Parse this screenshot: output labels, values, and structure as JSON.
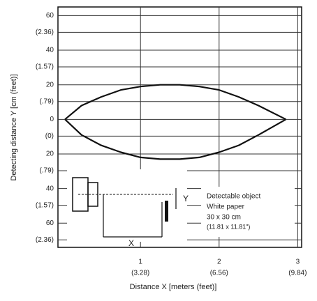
{
  "chart_data": {
    "type": "line",
    "xlabel": "Distance X [meters (feet)]",
    "ylabel": "Detecting distance Y [cm (feet)]",
    "x": [
      0.04,
      0.25,
      0.5,
      0.75,
      1.0,
      1.25,
      1.5,
      1.75,
      2.0,
      2.25,
      2.5,
      2.85
    ],
    "series": [
      {
        "name": null,
        "color": "#111111",
        "values": [
          0,
          8,
          13,
          17,
          19,
          20,
          20,
          19,
          17,
          13,
          8,
          0
        ]
      },
      {
        "name": null,
        "color": "#111111",
        "values": [
          0,
          -9,
          -15,
          -19,
          -22,
          -23,
          -23,
          -22,
          -19,
          -15,
          -9,
          0
        ]
      }
    ],
    "xlim": [
      -0.05,
      3.05
    ],
    "xticks": [
      1,
      2,
      3
    ],
    "xtick_sublabels": [
      "(3.28)",
      "(6.56)",
      "(9.84)"
    ],
    "ylim": [
      -74,
      65
    ],
    "yticks": [
      60,
      40,
      20,
      0,
      {
        "value": -20,
        "label": "20"
      },
      {
        "value": -40,
        "label": "40"
      },
      {
        "value": -60,
        "label": "60"
      }
    ],
    "ytick_sublabels": [
      "(2.36)",
      "(1.57)",
      "(.79)",
      "(0)",
      "(.79)",
      "(1.57)",
      "(2.36)"
    ],
    "grid": true,
    "annotations": [
      "Detectable object",
      "White paper",
      "30 x 30 cm",
      "(11.81 x 11.81\")"
    ],
    "inset_labels": [
      "X",
      "Y"
    ]
  }
}
